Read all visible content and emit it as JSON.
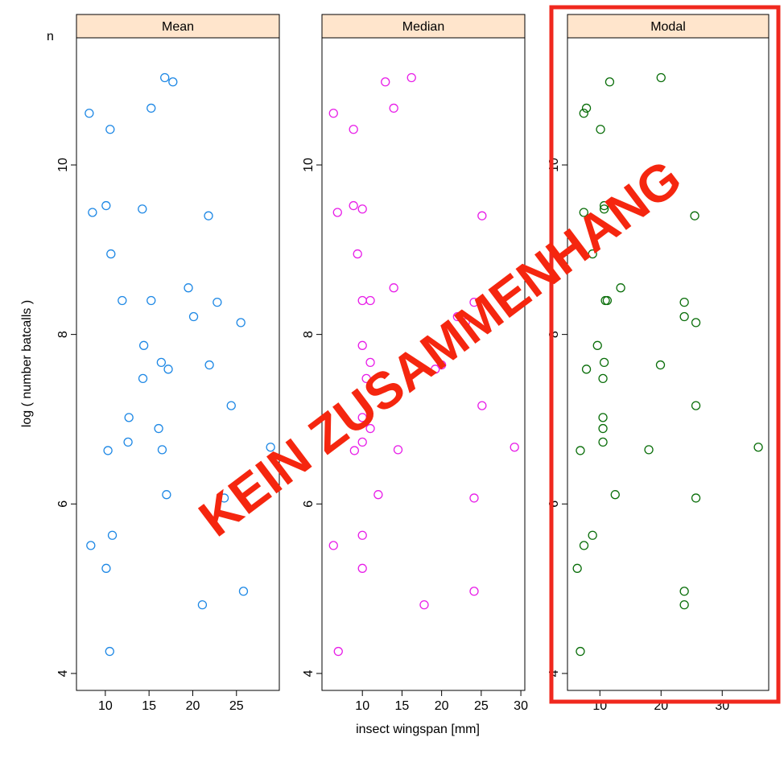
{
  "chart_data": {
    "type": "scatter",
    "xlabel": "insect wingspan [mm]",
    "ylabel": "log ( number batcalls )",
    "annotation": "KEIN ZUSAMMENHANG",
    "corner_text": "n",
    "ylim": [
      3.8,
      11.5
    ],
    "yticks": [
      4,
      6,
      8,
      10
    ],
    "y": [
      10.61,
      10.42,
      9.44,
      9.52,
      8.95,
      9.48,
      10.67,
      11.03,
      10.98,
      9.4,
      8.4,
      8.4,
      8.55,
      8.38,
      8.21,
      8.14,
      7.87,
      7.67,
      7.59,
      7.64,
      7.48,
      7.02,
      7.16,
      6.89,
      6.73,
      6.63,
      6.64,
      6.67,
      6.11,
      6.07,
      5.63,
      5.51,
      5.24,
      4.81,
      4.97,
      4.26
    ],
    "panels": [
      {
        "name": "Mean",
        "color": "#1e88e5",
        "xlim": [
          6.7,
          29.9
        ],
        "xticks": [
          10,
          15,
          20,
          25
        ],
        "x": [
          8.16,
          10.55,
          8.53,
          10.09,
          10.64,
          14.23,
          15.24,
          16.8,
          17.73,
          21.8,
          11.93,
          15.24,
          19.5,
          22.8,
          20.1,
          25.5,
          14.4,
          16.4,
          17.2,
          21.9,
          14.3,
          12.7,
          24.4,
          16.1,
          12.6,
          10.3,
          16.5,
          28.9,
          17.0,
          23.6,
          10.8,
          8.34,
          10.1,
          21.1,
          25.8,
          10.5
        ]
      },
      {
        "name": "Median",
        "color": "#e81ee8",
        "xlim": [
          4.9,
          30.5
        ],
        "xticks": [
          10,
          15,
          20,
          25,
          30
        ],
        "x": [
          6.35,
          8.88,
          6.86,
          8.88,
          9.39,
          10.0,
          13.96,
          16.2,
          12.9,
          25.1,
          10.0,
          11.0,
          13.96,
          24.1,
          22.0,
          23.0,
          10.0,
          11.0,
          19.2,
          20.0,
          10.5,
          10.0,
          25.1,
          11.0,
          10.0,
          9.0,
          14.5,
          29.2,
          12.0,
          24.1,
          10.0,
          6.35,
          10.0,
          17.8,
          24.1,
          6.96
        ]
      },
      {
        "name": "Modal",
        "color": "#0a6e0a",
        "xlim": [
          4.7,
          37.6
        ],
        "xticks": [
          10,
          20,
          30
        ],
        "x": [
          7.37,
          10.1,
          7.37,
          10.7,
          8.8,
          10.7,
          7.8,
          20.0,
          11.6,
          25.5,
          10.9,
          11.2,
          13.4,
          23.8,
          23.8,
          25.7,
          9.6,
          10.7,
          7.8,
          19.9,
          10.5,
          10.5,
          25.7,
          10.5,
          10.5,
          6.8,
          18.0,
          35.9,
          12.5,
          25.7,
          8.8,
          7.4,
          6.3,
          23.8,
          23.8,
          6.8
        ]
      }
    ]
  }
}
